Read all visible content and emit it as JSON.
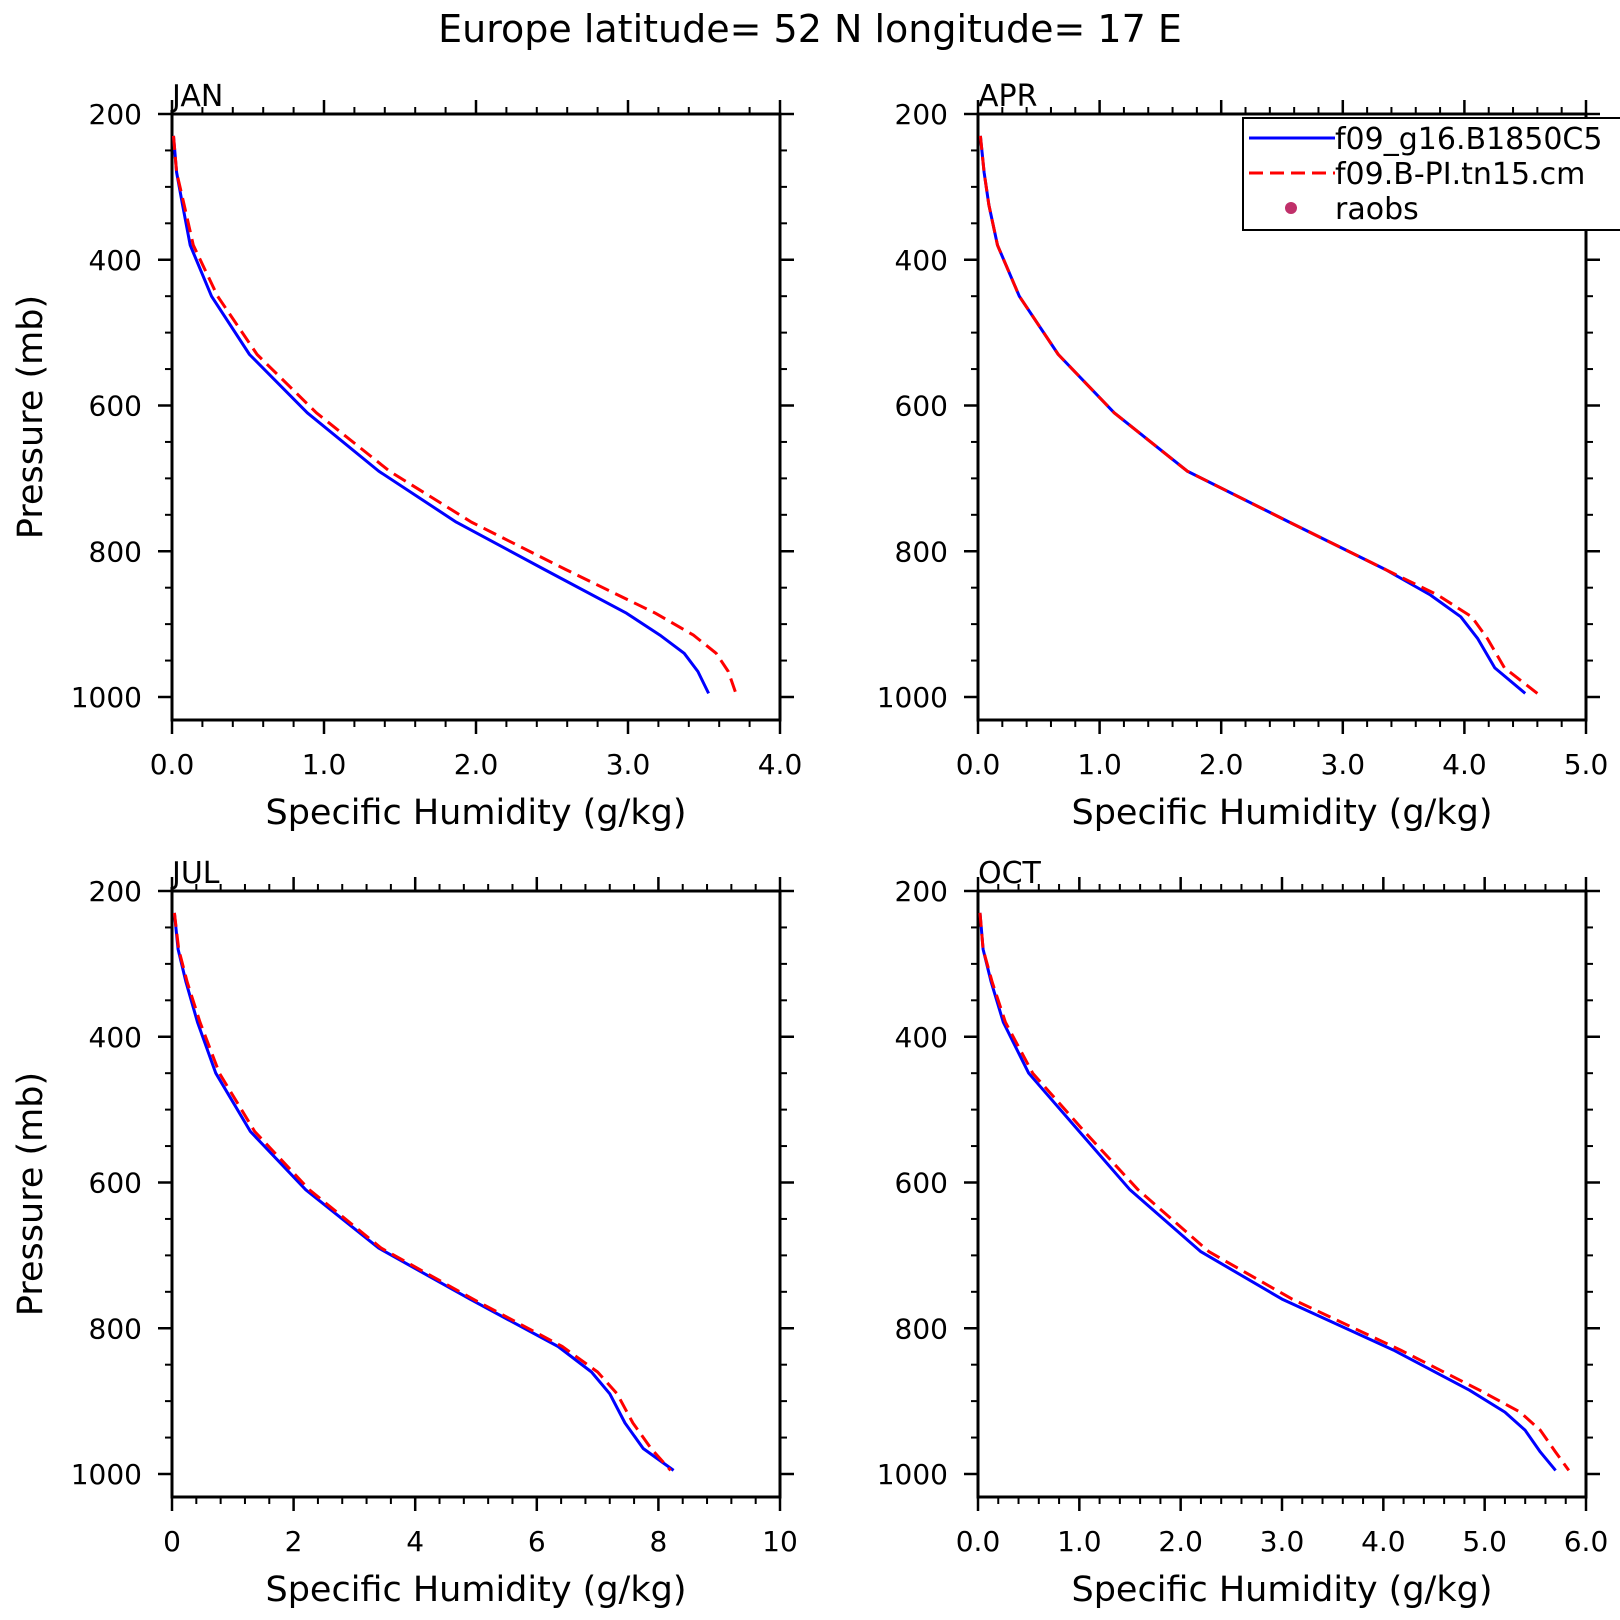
{
  "title": "Europe  latitude= 52 N longitude= 17 E",
  "legend": {
    "entries": [
      {
        "label": "f09_g16.B1850C5",
        "color": "#0000ff",
        "style": "solid",
        "marker": "line"
      },
      {
        "label": "f09.B-PI.tn15.cm",
        "color": "#ff0000",
        "style": "dashed",
        "marker": "line"
      },
      {
        "label": "raobs",
        "color": "#c0306a",
        "style": "none",
        "marker": "dot"
      }
    ]
  },
  "chart_data": [
    {
      "type": "line",
      "panel": "JAN",
      "xlabel": "Specific Humidity (g/kg)",
      "ylabel": "Pressure (mb)",
      "xlim": [
        0,
        4
      ],
      "ylim": [
        1000,
        200
      ],
      "xticks": [
        0,
        1,
        2,
        3,
        4
      ],
      "xtick_labels": [
        "0.0",
        "1.0",
        "2.0",
        "3.0",
        "4.0"
      ],
      "yticks": [
        200,
        400,
        600,
        800,
        1000
      ],
      "ytick_labels": [
        "200",
        "400",
        "600",
        "800",
        "1000"
      ],
      "series": [
        {
          "name": "f09_g16.B1850C5",
          "color": "#0000ff",
          "dash": "solid",
          "x": [
            0.01,
            0.03,
            0.07,
            0.12,
            0.26,
            0.51,
            0.89,
            1.36,
            1.87,
            2.45,
            2.99,
            3.21,
            3.37,
            3.46,
            3.53
          ],
          "y": [
            230,
            280,
            325,
            380,
            450,
            530,
            610,
            690,
            760,
            825,
            885,
            915,
            940,
            965,
            995
          ]
        },
        {
          "name": "f09.B-PI.tn15.cm",
          "color": "#ff0000",
          "dash": "dashed",
          "x": [
            0.01,
            0.03,
            0.08,
            0.14,
            0.3,
            0.56,
            0.95,
            1.43,
            1.97,
            2.59,
            3.18,
            3.43,
            3.58,
            3.66,
            3.71
          ],
          "y": [
            230,
            280,
            325,
            380,
            450,
            530,
            610,
            690,
            760,
            825,
            885,
            915,
            940,
            965,
            995
          ]
        }
      ]
    },
    {
      "type": "line",
      "panel": "APR",
      "xlabel": "Specific Humidity (g/kg)",
      "ylabel": "",
      "xlim": [
        0,
        5
      ],
      "ylim": [
        1000,
        200
      ],
      "xticks": [
        0,
        1,
        2,
        3,
        4,
        5
      ],
      "xtick_labels": [
        "0.0",
        "1.0",
        "2.0",
        "3.0",
        "4.0",
        "5.0"
      ],
      "yticks": [
        200,
        400,
        600,
        800,
        1000
      ],
      "ytick_labels": [
        "200",
        "400",
        "600",
        "800",
        "1000"
      ],
      "series": [
        {
          "name": "f09_g16.B1850C5",
          "color": "#0000ff",
          "dash": "solid",
          "x": [
            0.02,
            0.05,
            0.09,
            0.16,
            0.34,
            0.66,
            1.12,
            1.72,
            2.56,
            3.35,
            3.72,
            3.97,
            4.11,
            4.25,
            4.5
          ],
          "y": [
            230,
            280,
            325,
            380,
            450,
            530,
            610,
            690,
            760,
            825,
            860,
            890,
            920,
            960,
            995
          ]
        },
        {
          "name": "f09.B-PI.tn15.cm",
          "color": "#ff0000",
          "dash": "dashed",
          "x": [
            0.02,
            0.05,
            0.09,
            0.16,
            0.34,
            0.66,
            1.12,
            1.72,
            2.56,
            3.35,
            3.78,
            4.06,
            4.19,
            4.33,
            4.6
          ],
          "y": [
            230,
            280,
            325,
            380,
            450,
            530,
            610,
            690,
            760,
            825,
            860,
            890,
            920,
            960,
            995
          ]
        }
      ]
    },
    {
      "type": "line",
      "panel": "JUL",
      "xlabel": "Specific Humidity (g/kg)",
      "ylabel": "Pressure (mb)",
      "xlim": [
        0,
        10
      ],
      "ylim": [
        1000,
        200
      ],
      "xticks": [
        0,
        2,
        4,
        6,
        8,
        10
      ],
      "xtick_labels": [
        "0",
        "2",
        "4",
        "6",
        "8",
        "10"
      ],
      "yticks": [
        200,
        400,
        600,
        800,
        1000
      ],
      "ytick_labels": [
        "200",
        "400",
        "600",
        "800",
        "1000"
      ],
      "series": [
        {
          "name": "f09_g16.B1850C5",
          "color": "#0000ff",
          "dash": "solid",
          "x": [
            0.04,
            0.1,
            0.23,
            0.42,
            0.72,
            1.29,
            2.2,
            3.4,
            4.9,
            6.35,
            6.9,
            7.2,
            7.45,
            7.75,
            8.25
          ],
          "y": [
            230,
            280,
            325,
            380,
            450,
            530,
            610,
            690,
            760,
            825,
            860,
            890,
            930,
            965,
            995
          ]
        },
        {
          "name": "f09.B-PI.tn15.cm",
          "color": "#ff0000",
          "dash": "dashed",
          "x": [
            0.04,
            0.11,
            0.25,
            0.46,
            0.78,
            1.36,
            2.26,
            3.44,
            4.95,
            6.42,
            7.0,
            7.32,
            7.58,
            7.88,
            8.2
          ],
          "y": [
            230,
            280,
            325,
            380,
            450,
            530,
            610,
            690,
            760,
            825,
            860,
            890,
            930,
            965,
            995
          ]
        }
      ]
    },
    {
      "type": "line",
      "panel": "OCT",
      "xlabel": "Specific Humidity (g/kg)",
      "ylabel": "",
      "xlim": [
        0,
        6
      ],
      "ylim": [
        1000,
        200
      ],
      "xticks": [
        0,
        1,
        2,
        3,
        4,
        5,
        6
      ],
      "xtick_labels": [
        "0.0",
        "1.0",
        "2.0",
        "3.0",
        "4.0",
        "5.0",
        "6.0"
      ],
      "yticks": [
        200,
        400,
        600,
        800,
        1000
      ],
      "ytick_labels": [
        "200",
        "400",
        "600",
        "800",
        "1000"
      ],
      "series": [
        {
          "name": "f09_g16.B1850C5",
          "color": "#0000ff",
          "dash": "solid",
          "x": [
            0.02,
            0.05,
            0.13,
            0.25,
            0.5,
            1.0,
            1.5,
            2.2,
            3.0,
            4.1,
            4.85,
            5.2,
            5.4,
            5.55,
            5.7
          ],
          "y": [
            230,
            280,
            325,
            380,
            450,
            530,
            610,
            695,
            760,
            830,
            885,
            915,
            940,
            970,
            995
          ]
        },
        {
          "name": "f09.B-PI.tn15.cm",
          "color": "#ff0000",
          "dash": "dashed",
          "x": [
            0.02,
            0.05,
            0.14,
            0.27,
            0.54,
            1.05,
            1.58,
            2.28,
            3.1,
            4.17,
            4.95,
            5.35,
            5.55,
            5.7,
            5.83
          ],
          "y": [
            230,
            280,
            325,
            380,
            450,
            530,
            610,
            695,
            760,
            830,
            885,
            915,
            940,
            970,
            995
          ]
        }
      ]
    }
  ]
}
